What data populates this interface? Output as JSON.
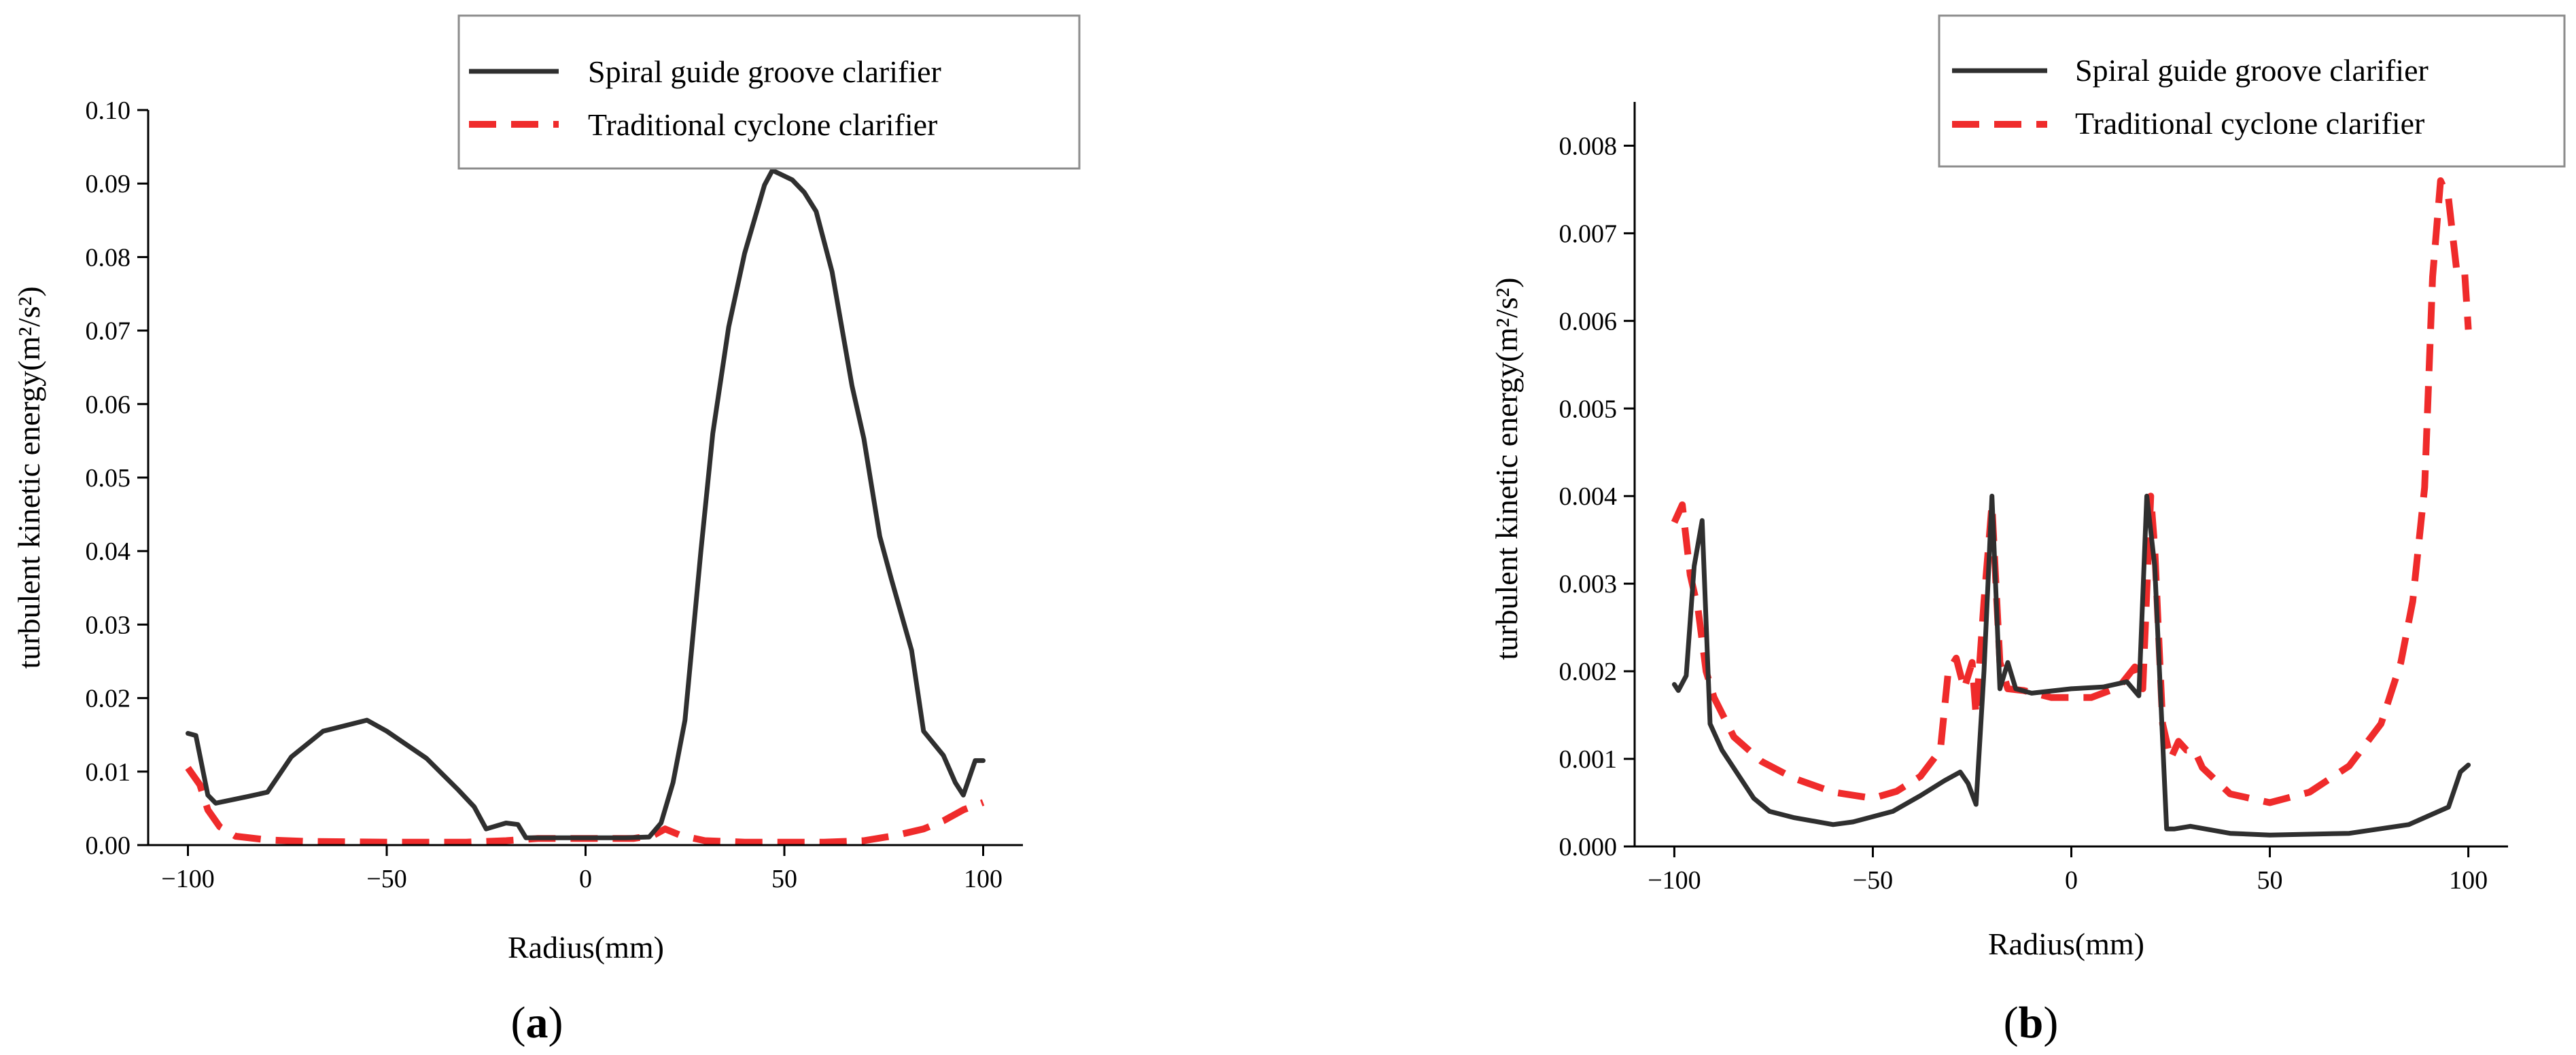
{
  "colors": {
    "spiral": "#2f2f2f",
    "traditional": "#ef2b2b",
    "axis": "#000000",
    "legend_border": "#8c8c8c"
  },
  "chart_data": [
    {
      "panel_label": {
        "open": "(",
        "letter": "a",
        "close": ")"
      },
      "type": "line",
      "title": "",
      "xlabel": "Radius(mm)",
      "ylabel": "turbulent kinetic energy(m²/s²)",
      "xlim": [
        -110,
        110
      ],
      "ylim": [
        0,
        0.1
      ],
      "x_ticks": [
        -100,
        -50,
        0,
        50,
        100
      ],
      "x_tick_labels": [
        "−100",
        "−50",
        "0",
        "50",
        "100"
      ],
      "y_ticks": [
        0,
        0.01,
        0.02,
        0.03,
        0.04,
        0.05,
        0.06,
        0.07,
        0.08,
        0.09,
        0.1
      ],
      "y_tick_labels": [
        "0.00",
        "0.01",
        "0.02",
        "0.03",
        "0.04",
        "0.05",
        "0.06",
        "0.07",
        "0.08",
        "0.09",
        "0.10"
      ],
      "grid": false,
      "legend_position": "top-right",
      "series": [
        {
          "name": "Spiral guide groove clarifier",
          "style": "solid",
          "points": [
            [
              -100,
              0.0152
            ],
            [
              -98,
              0.0149
            ],
            [
              -95,
              0.0068
            ],
            [
              -93,
              0.0057
            ],
            [
              -85,
              0.0066
            ],
            [
              -80,
              0.0072
            ],
            [
              -74,
              0.012
            ],
            [
              -66,
              0.0155
            ],
            [
              -55,
              0.017
            ],
            [
              -50,
              0.0155
            ],
            [
              -40,
              0.0118
            ],
            [
              -32,
              0.0075
            ],
            [
              -28,
              0.0052
            ],
            [
              -25,
              0.0022
            ],
            [
              -20,
              0.003
            ],
            [
              -17,
              0.0028
            ],
            [
              -15,
              0.001
            ],
            [
              -10,
              0.001
            ],
            [
              0,
              0.001
            ],
            [
              10,
              0.001
            ],
            [
              16,
              0.0011
            ],
            [
              19,
              0.003
            ],
            [
              22,
              0.0085
            ],
            [
              25,
              0.017
            ],
            [
              29,
              0.04
            ],
            [
              32,
              0.056
            ],
            [
              36,
              0.0705
            ],
            [
              40,
              0.0805
            ],
            [
              45,
              0.0898
            ],
            [
              47,
              0.0918
            ],
            [
              52,
              0.0905
            ],
            [
              55,
              0.0888
            ],
            [
              58,
              0.0862
            ],
            [
              62,
              0.078
            ],
            [
              67,
              0.0625
            ],
            [
              70,
              0.0553
            ],
            [
              74,
              0.042
            ],
            [
              77,
              0.036
            ],
            [
              82,
              0.0265
            ],
            [
              85,
              0.0155
            ],
            [
              90,
              0.0122
            ],
            [
              93,
              0.0085
            ],
            [
              95,
              0.0068
            ],
            [
              98,
              0.0115
            ],
            [
              100,
              0.0115
            ]
          ]
        },
        {
          "name": "Traditional cyclone clarifier",
          "style": "dashed",
          "points": [
            [
              -100,
              0.0105
            ],
            [
              -97,
              0.0082
            ],
            [
              -95,
              0.0048
            ],
            [
              -92,
              0.0025
            ],
            [
              -88,
              0.0012
            ],
            [
              -80,
              0.0007
            ],
            [
              -70,
              0.0005
            ],
            [
              -50,
              0.0004
            ],
            [
              -30,
              0.0004
            ],
            [
              -20,
              0.0006
            ],
            [
              -12,
              0.0009
            ],
            [
              0,
              0.0009
            ],
            [
              12,
              0.0009
            ],
            [
              17,
              0.0013
            ],
            [
              20,
              0.0022
            ],
            [
              24,
              0.0013
            ],
            [
              30,
              0.0006
            ],
            [
              40,
              0.0004
            ],
            [
              60,
              0.0004
            ],
            [
              70,
              0.0006
            ],
            [
              78,
              0.0013
            ],
            [
              85,
              0.0022
            ],
            [
              90,
              0.0033
            ],
            [
              95,
              0.0048
            ],
            [
              100,
              0.0058
            ]
          ]
        }
      ]
    },
    {
      "panel_label": {
        "open": "(",
        "letter": "b",
        "close": ")"
      },
      "type": "line",
      "title": "",
      "xlabel": "Radius(mm)",
      "ylabel": "turbulent kinetic energy(m²/s²)",
      "xlim": [
        -110,
        110
      ],
      "ylim": [
        0,
        0.0085
      ],
      "x_ticks": [
        -100,
        -50,
        0,
        50,
        100
      ],
      "x_tick_labels": [
        "−100",
        "−50",
        "0",
        "50",
        "100"
      ],
      "y_ticks": [
        0,
        0.001,
        0.002,
        0.003,
        0.004,
        0.005,
        0.006,
        0.007,
        0.008
      ],
      "y_tick_labels": [
        "0.000",
        "0.001",
        "0.002",
        "0.003",
        "0.004",
        "0.005",
        "0.006",
        "0.007",
        "0.008"
      ],
      "grid": false,
      "legend_position": "top-right",
      "series": [
        {
          "name": "Spiral guide groove clarifier",
          "style": "solid",
          "points": [
            [
              -100,
              0.00185
            ],
            [
              -99,
              0.00178
            ],
            [
              -97,
              0.00195
            ],
            [
              -95,
              0.0032
            ],
            [
              -93,
              0.00372
            ],
            [
              -91,
              0.0014
            ],
            [
              -88,
              0.0011
            ],
            [
              -80,
              0.00055
            ],
            [
              -76,
              0.0004
            ],
            [
              -70,
              0.00033
            ],
            [
              -60,
              0.00025
            ],
            [
              -55,
              0.00028
            ],
            [
              -45,
              0.0004
            ],
            [
              -38,
              0.00058
            ],
            [
              -32,
              0.00075
            ],
            [
              -28,
              0.00085
            ],
            [
              -26,
              0.00072
            ],
            [
              -24,
              0.00048
            ],
            [
              -22,
              0.002
            ],
            [
              -20,
              0.004
            ],
            [
              -18,
              0.0018
            ],
            [
              -16,
              0.0021
            ],
            [
              -14,
              0.0018
            ],
            [
              -10,
              0.00175
            ],
            [
              0,
              0.0018
            ],
            [
              8,
              0.00182
            ],
            [
              14,
              0.00188
            ],
            [
              17,
              0.00172
            ],
            [
              19,
              0.004
            ],
            [
              21,
              0.0032
            ],
            [
              24,
              0.0002
            ],
            [
              26,
              0.0002
            ],
            [
              30,
              0.00023
            ],
            [
              40,
              0.00015
            ],
            [
              50,
              0.00013
            ],
            [
              70,
              0.00015
            ],
            [
              85,
              0.00025
            ],
            [
              95,
              0.00045
            ],
            [
              98,
              0.00085
            ],
            [
              100,
              0.00093
            ]
          ]
        },
        {
          "name": "Traditional cyclone clarifier",
          "style": "dashed",
          "points": [
            [
              -100,
              0.0037
            ],
            [
              -98,
              0.0039
            ],
            [
              -96,
              0.0031
            ],
            [
              -94,
              0.0027
            ],
            [
              -92,
              0.002
            ],
            [
              -90,
              0.0017
            ],
            [
              -85,
              0.00125
            ],
            [
              -78,
              0.00097
            ],
            [
              -70,
              0.00078
            ],
            [
              -60,
              0.00062
            ],
            [
              -50,
              0.00055
            ],
            [
              -44,
              0.00063
            ],
            [
              -38,
              0.0008
            ],
            [
              -33,
              0.0011
            ],
            [
              -31,
              0.002
            ],
            [
              -29,
              0.00215
            ],
            [
              -27,
              0.0018
            ],
            [
              -25,
              0.0021
            ],
            [
              -24,
              0.0015
            ],
            [
              -22,
              0.0028
            ],
            [
              -20,
              0.0039
            ],
            [
              -18,
              0.0021
            ],
            [
              -16,
              0.0018
            ],
            [
              -12,
              0.00178
            ],
            [
              -5,
              0.0017
            ],
            [
              5,
              0.0017
            ],
            [
              12,
              0.00182
            ],
            [
              16,
              0.00205
            ],
            [
              18,
              0.0018
            ],
            [
              20,
              0.004
            ],
            [
              21,
              0.0034
            ],
            [
              23,
              0.0014
            ],
            [
              25,
              0.001
            ],
            [
              27,
              0.0012
            ],
            [
              29,
              0.0011
            ],
            [
              31,
              0.0011
            ],
            [
              33,
              0.0009
            ],
            [
              40,
              0.0006
            ],
            [
              50,
              0.0005
            ],
            [
              60,
              0.00062
            ],
            [
              70,
              0.00092
            ],
            [
              78,
              0.0014
            ],
            [
              83,
              0.0021
            ],
            [
              86,
              0.0028
            ],
            [
              89,
              0.0041
            ],
            [
              91,
              0.0065
            ],
            [
              93,
              0.0076
            ],
            [
              95,
              0.0074
            ],
            [
              97,
              0.0066
            ],
            [
              99,
              0.0066
            ],
            [
              100,
              0.0059
            ]
          ]
        }
      ]
    }
  ]
}
